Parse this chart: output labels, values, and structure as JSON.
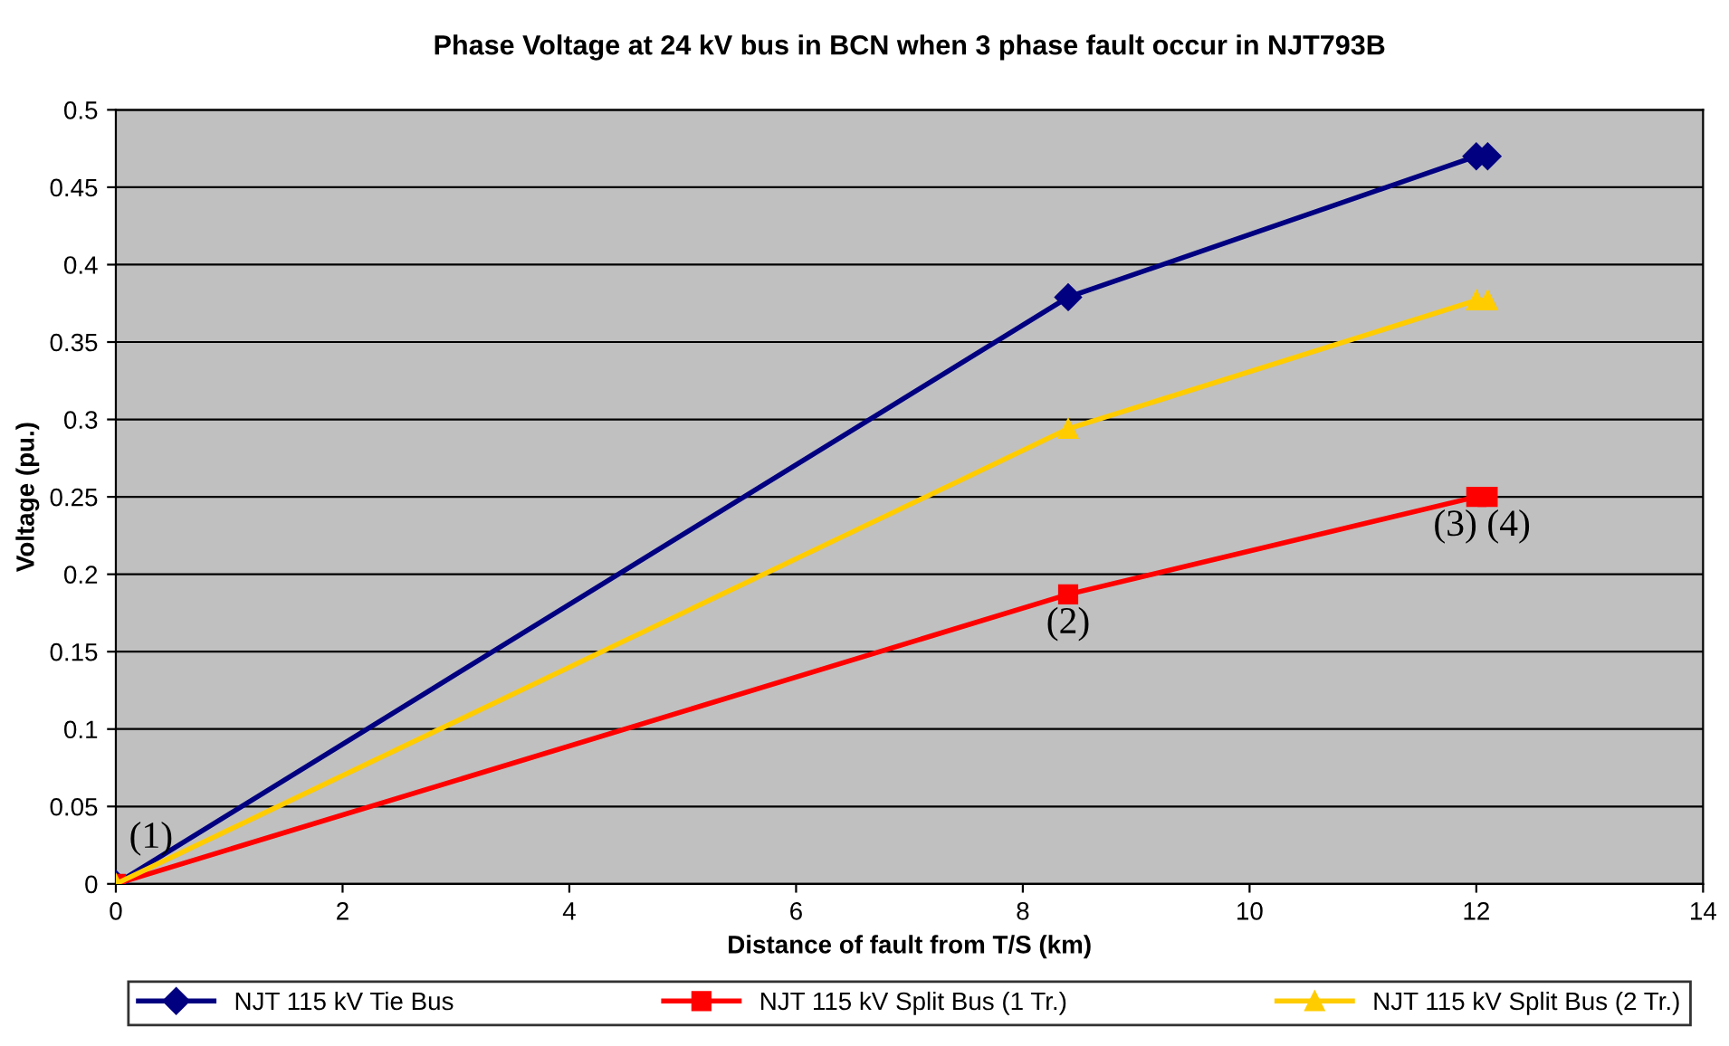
{
  "chart_data": {
    "type": "line",
    "title": "Phase Voltage at 24 kV bus in BCN when 3 phase fault occur in NJT793B",
    "xlabel": "Distance of fault from T/S (km)",
    "ylabel": "Voltage (pu.)",
    "xlim": [
      0,
      14
    ],
    "xticks": [
      0,
      2,
      4,
      6,
      8,
      10,
      12,
      14
    ],
    "ylim": [
      0,
      0.5
    ],
    "yticks": [
      0,
      0.05,
      0.1,
      0.15,
      0.2,
      0.25,
      0.3,
      0.35,
      0.4,
      0.45,
      0.5
    ],
    "grid": "y",
    "legend": "bottom",
    "series": [
      {
        "name": "NJT 115 kV Tie Bus",
        "color": "#000080",
        "marker": "diamond",
        "x": [
          0,
          8.4,
          12.0,
          12.1
        ],
        "values": [
          0,
          0.379,
          0.47,
          0.47
        ]
      },
      {
        "name": "NJT 115 kV Split Bus (1 Tr.)",
        "color": "#ff0000",
        "marker": "square",
        "x": [
          0,
          8.4,
          12.0,
          12.1
        ],
        "values": [
          0,
          0.187,
          0.25,
          0.25
        ]
      },
      {
        "name": "NJT 115 kV Split Bus (2 Tr.)",
        "color": "#ffcc00",
        "marker": "triangle",
        "x": [
          0,
          8.4,
          12.0,
          12.1
        ],
        "values": [
          0,
          0.294,
          0.377,
          0.377
        ]
      }
    ],
    "annotations": [
      {
        "text": "(1)",
        "x": 0,
        "y": 0
      },
      {
        "text": "(2)",
        "x": 8.4,
        "y": 0.187
      },
      {
        "text": "(3) (4)",
        "x": 12.05,
        "y": 0.25
      }
    ]
  }
}
